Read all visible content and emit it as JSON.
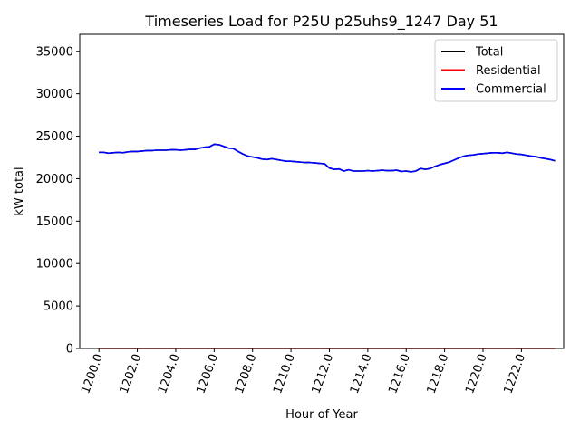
{
  "chart_data": {
    "type": "line",
    "title": "Timeseries Load for P25U p25uhs9_1247  Day 51",
    "xlabel": "Hour of Year",
    "ylabel": "kW total",
    "xlim": [
      1199.0,
      1224.2
    ],
    "ylim": [
      0,
      37000
    ],
    "x_ticks": [
      1200,
      1202,
      1204,
      1206,
      1208,
      1210,
      1212,
      1214,
      1216,
      1218,
      1220,
      1222
    ],
    "x_tick_labels": [
      "1200.0",
      "1202.0",
      "1204.0",
      "1206.0",
      "1208.0",
      "1210.0",
      "1212.0",
      "1214.0",
      "1216.0",
      "1218.0",
      "1220.0",
      "1222.0"
    ],
    "y_ticks": [
      0,
      5000,
      10000,
      15000,
      20000,
      25000,
      30000,
      35000
    ],
    "y_tick_labels": [
      "0",
      "5000",
      "10000",
      "15000",
      "20000",
      "25000",
      "30000",
      "35000"
    ],
    "legend_position": "top-right",
    "x": [
      1200.0,
      1200.25,
      1200.5,
      1200.75,
      1201.0,
      1201.25,
      1201.5,
      1201.75,
      1202.0,
      1202.25,
      1202.5,
      1202.75,
      1203.0,
      1203.25,
      1203.5,
      1203.75,
      1204.0,
      1204.25,
      1204.5,
      1204.75,
      1205.0,
      1205.25,
      1205.5,
      1205.75,
      1206.0,
      1206.25,
      1206.5,
      1206.75,
      1207.0,
      1207.25,
      1207.5,
      1207.75,
      1208.0,
      1208.25,
      1208.5,
      1208.75,
      1209.0,
      1209.25,
      1209.5,
      1209.75,
      1210.0,
      1210.25,
      1210.5,
      1210.75,
      1211.0,
      1211.25,
      1211.5,
      1211.75,
      1212.0,
      1212.25,
      1212.5,
      1212.75,
      1213.0,
      1213.25,
      1213.5,
      1213.75,
      1214.0,
      1214.25,
      1214.5,
      1214.75,
      1215.0,
      1215.25,
      1215.5,
      1215.75,
      1216.0,
      1216.25,
      1216.5,
      1216.75,
      1217.0,
      1217.25,
      1217.5,
      1217.75,
      1218.0,
      1218.25,
      1218.5,
      1218.75,
      1219.0,
      1219.25,
      1219.5,
      1219.75,
      1220.0,
      1220.25,
      1220.5,
      1220.75,
      1221.0,
      1221.25,
      1221.5,
      1221.75,
      1222.0,
      1222.25,
      1222.5,
      1222.75,
      1223.0,
      1223.25,
      1223.5,
      1223.75
    ],
    "series": [
      {
        "name": "Total",
        "color": "#000000",
        "values": [
          23100,
          23100,
          23000,
          23050,
          23100,
          23050,
          23150,
          23200,
          23200,
          23250,
          23300,
          23300,
          23350,
          23350,
          23350,
          23400,
          23400,
          23350,
          23400,
          23450,
          23450,
          23600,
          23700,
          23750,
          24050,
          24000,
          23800,
          23600,
          23550,
          23200,
          22900,
          22650,
          22550,
          22450,
          22300,
          22250,
          22350,
          22250,
          22150,
          22050,
          22050,
          22000,
          21950,
          21900,
          21900,
          21850,
          21800,
          21750,
          21250,
          21100,
          21150,
          20900,
          21050,
          20900,
          20900,
          20900,
          20950,
          20900,
          20950,
          21000,
          20950,
          20950,
          21000,
          20850,
          20900,
          20800,
          20900,
          21200,
          21100,
          21200,
          21450,
          21650,
          21800,
          21950,
          22200,
          22450,
          22650,
          22750,
          22800,
          22900,
          22950,
          23000,
          23050,
          23050,
          23000,
          23100,
          23000,
          22900,
          22850,
          22750,
          22650,
          22600,
          22450,
          22350,
          22250,
          22100
        ]
      },
      {
        "name": "Residential",
        "color": "#ff0000",
        "values": [
          0,
          0,
          0,
          0,
          0,
          0,
          0,
          0,
          0,
          0,
          0,
          0,
          0,
          0,
          0,
          0,
          0,
          0,
          0,
          0,
          0,
          0,
          0,
          0,
          0,
          0,
          0,
          0,
          0,
          0,
          0,
          0,
          0,
          0,
          0,
          0,
          0,
          0,
          0,
          0,
          0,
          0,
          0,
          0,
          0,
          0,
          0,
          0,
          0,
          0,
          0,
          0,
          0,
          0,
          0,
          0,
          0,
          0,
          0,
          0,
          0,
          0,
          0,
          0,
          0,
          0,
          0,
          0,
          0,
          0,
          0,
          0,
          0,
          0,
          0,
          0,
          0,
          0,
          0,
          0,
          0,
          0,
          0,
          0,
          0,
          0,
          0,
          0,
          0,
          0,
          0,
          0,
          0,
          0,
          0,
          0
        ]
      },
      {
        "name": "Commercial",
        "color": "#0000ff",
        "values": [
          23100,
          23100,
          23000,
          23050,
          23100,
          23050,
          23150,
          23200,
          23200,
          23250,
          23300,
          23300,
          23350,
          23350,
          23350,
          23400,
          23400,
          23350,
          23400,
          23450,
          23450,
          23600,
          23700,
          23750,
          24050,
          24000,
          23800,
          23600,
          23550,
          23200,
          22900,
          22650,
          22550,
          22450,
          22300,
          22250,
          22350,
          22250,
          22150,
          22050,
          22050,
          22000,
          21950,
          21900,
          21900,
          21850,
          21800,
          21750,
          21250,
          21100,
          21150,
          20900,
          21050,
          20900,
          20900,
          20900,
          20950,
          20900,
          20950,
          21000,
          20950,
          20950,
          21000,
          20850,
          20900,
          20800,
          20900,
          21200,
          21100,
          21200,
          21450,
          21650,
          21800,
          21950,
          22200,
          22450,
          22650,
          22750,
          22800,
          22900,
          22950,
          23000,
          23050,
          23050,
          23000,
          23100,
          23000,
          22900,
          22850,
          22750,
          22650,
          22600,
          22450,
          22350,
          22250,
          22100
        ]
      }
    ]
  }
}
